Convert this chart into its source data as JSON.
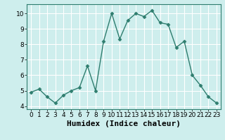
{
  "x": [
    0,
    1,
    2,
    3,
    4,
    5,
    6,
    7,
    8,
    9,
    10,
    11,
    12,
    13,
    14,
    15,
    16,
    17,
    18,
    19,
    20,
    21,
    22,
    23
  ],
  "y": [
    4.9,
    5.1,
    4.6,
    4.2,
    4.7,
    5.0,
    5.2,
    6.6,
    5.0,
    8.2,
    10.0,
    8.35,
    9.55,
    10.0,
    9.8,
    10.2,
    9.4,
    9.3,
    7.8,
    8.2,
    6.0,
    5.35,
    4.6,
    4.2
  ],
  "line_color": "#2e7d6e",
  "marker": "D",
  "marker_size": 2.5,
  "bg_color": "#ceeeed",
  "grid_color": "#ffffff",
  "xlabel": "Humidex (Indice chaleur)",
  "xlim": [
    -0.5,
    23.5
  ],
  "ylim": [
    3.8,
    10.6
  ],
  "yticks": [
    4,
    5,
    6,
    7,
    8,
    9,
    10
  ],
  "xticks": [
    0,
    1,
    2,
    3,
    4,
    5,
    6,
    7,
    8,
    9,
    10,
    11,
    12,
    13,
    14,
    15,
    16,
    17,
    18,
    19,
    20,
    21,
    22,
    23
  ],
  "tick_fontsize": 6.5,
  "xlabel_fontsize": 8
}
